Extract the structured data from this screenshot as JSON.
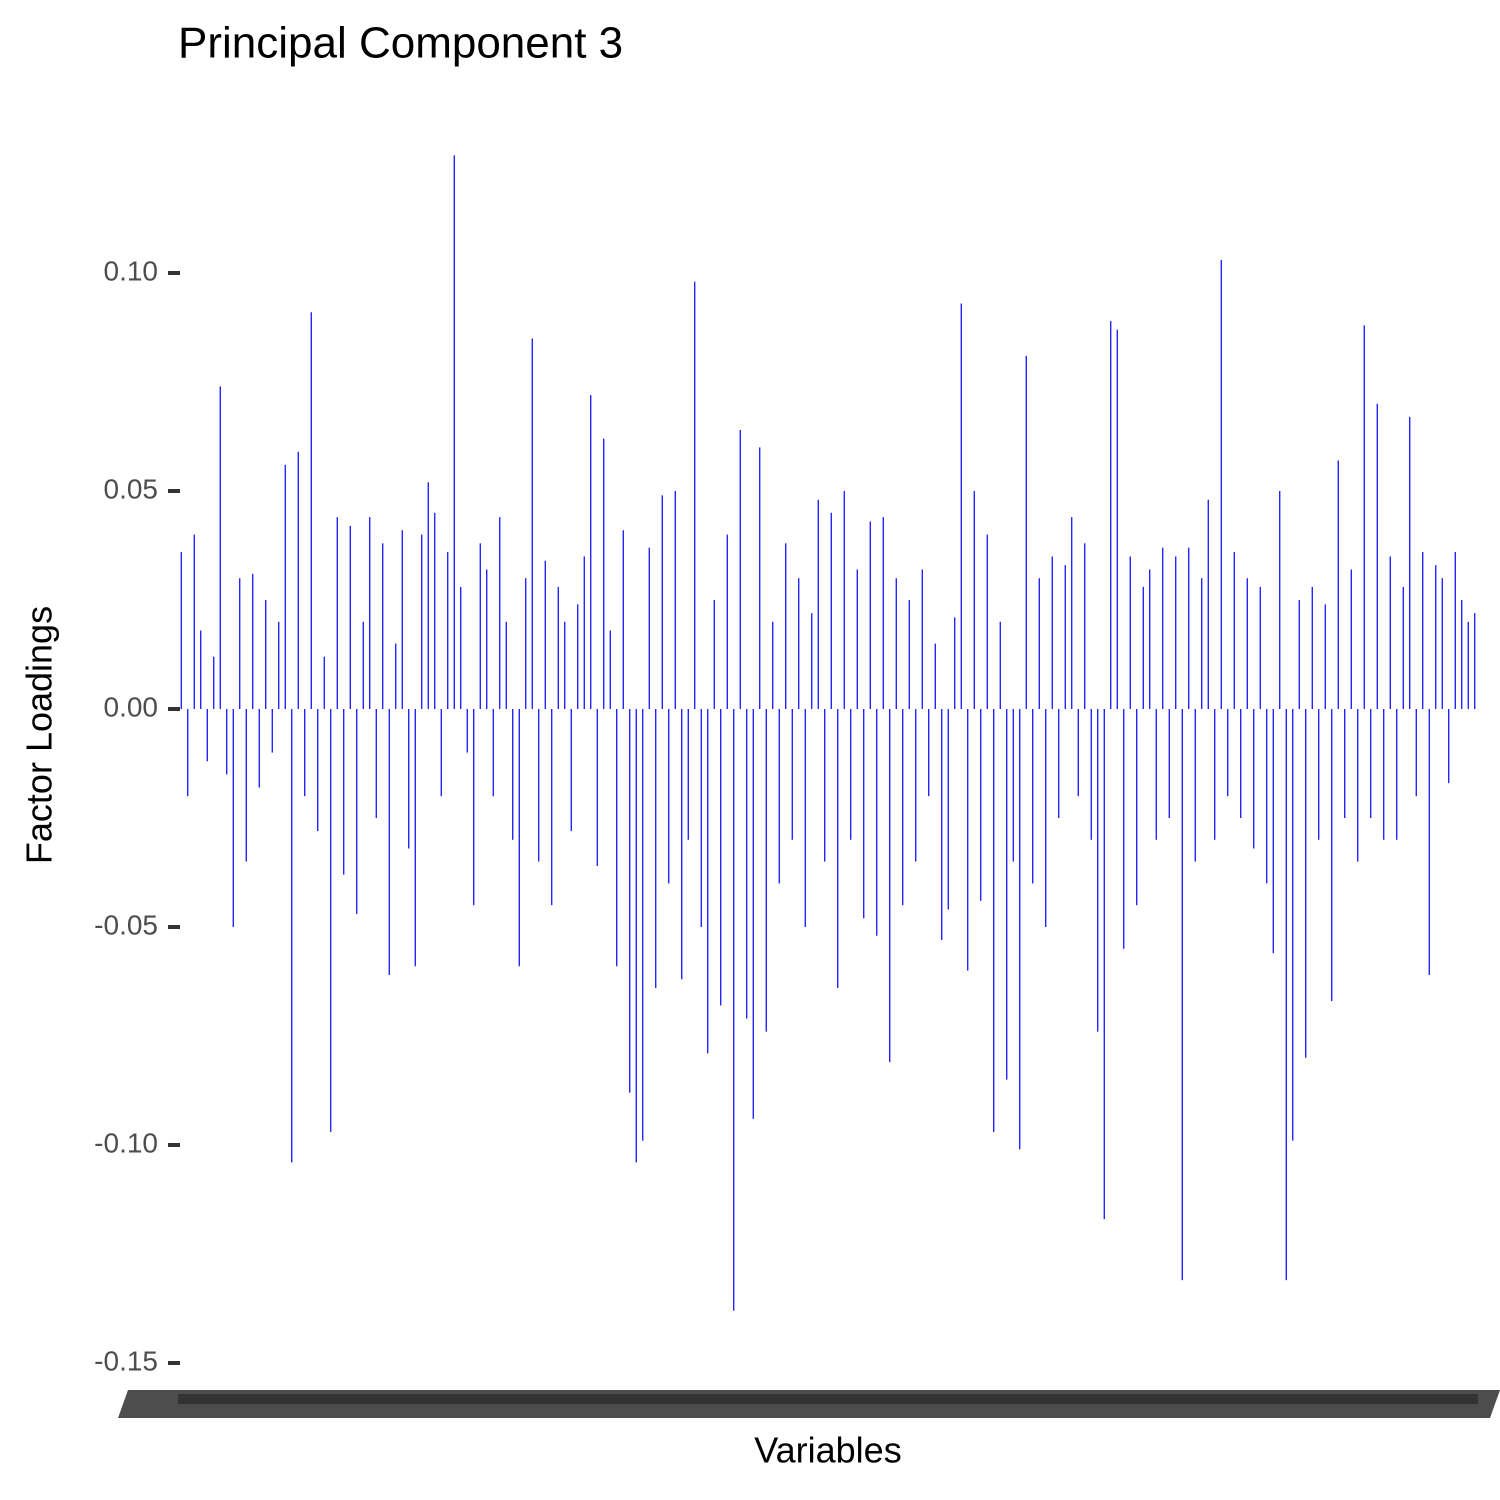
{
  "chart_data": {
    "type": "bar",
    "title": "Principal Component 3",
    "x_label": "Variables",
    "y_label": "Factor Loadings",
    "color": "#0000ff",
    "ylim": [
      -0.153,
      0.133
    ],
    "yticks": [
      {
        "value": -0.15,
        "label": "-0.15"
      },
      {
        "value": -0.1,
        "label": "-0.10"
      },
      {
        "value": -0.05,
        "label": "-0.05"
      },
      {
        "value": 0,
        "label": "0.00"
      },
      0.05,
      {
        "value": 0.1,
        "label": "0.10"
      }
    ],
    "categories": [
      null,
      null,
      null,
      null,
      null,
      null,
      null,
      null,
      null,
      null,
      null,
      null,
      null,
      null,
      null,
      null,
      null,
      null,
      null,
      null,
      null,
      null,
      null,
      null,
      null,
      null,
      null,
      null,
      null,
      null,
      null,
      null,
      null,
      null,
      null,
      null,
      null,
      null,
      null,
      null,
      null,
      null,
      null,
      null,
      null,
      null,
      null,
      null,
      null,
      null,
      null,
      null,
      null,
      null,
      null,
      null,
      null,
      null,
      null,
      null,
      null,
      null,
      null,
      null,
      null,
      null,
      null,
      null,
      null,
      null,
      null,
      null,
      null,
      null,
      null,
      null,
      null,
      null,
      null,
      null,
      null,
      null,
      null,
      null,
      null,
      null,
      null,
      null,
      null,
      null,
      null,
      null,
      null,
      null,
      null,
      null,
      null,
      null,
      null,
      null,
      null,
      null,
      null,
      null,
      null,
      null,
      null,
      null,
      null,
      null,
      null,
      null,
      null,
      null,
      null,
      null,
      null,
      null,
      null,
      null,
      null,
      null,
      null,
      null,
      null,
      null,
      null,
      null,
      null,
      null,
      null,
      null,
      null,
      null,
      null,
      null,
      null,
      null,
      null,
      null,
      null,
      null,
      null,
      null,
      null,
      null,
      null,
      null,
      null,
      null,
      null,
      null,
      null,
      null,
      null,
      null,
      null,
      null,
      null,
      null,
      null,
      null,
      null,
      null,
      null,
      null,
      null,
      null,
      null,
      null,
      null,
      null,
      null,
      null,
      null,
      null,
      null,
      null,
      null,
      null,
      null,
      null,
      null,
      null,
      null,
      null,
      null,
      null,
      null,
      null,
      null,
      null,
      null,
      null,
      null,
      null,
      null,
      null,
      null,
      null
    ],
    "values": [
      0.036,
      -0.02,
      0.04,
      0.018,
      -0.012,
      0.012,
      0.074,
      -0.015,
      -0.05,
      0.03,
      -0.035,
      0.031,
      -0.018,
      0.025,
      -0.01,
      0.02,
      0.056,
      -0.104,
      0.059,
      -0.02,
      0.091,
      -0.028,
      0.012,
      -0.097,
      0.044,
      -0.038,
      0.042,
      -0.047,
      0.02,
      0.044,
      -0.025,
      0.038,
      -0.061,
      0.015,
      0.041,
      -0.032,
      -0.059,
      0.04,
      0.052,
      0.045,
      -0.02,
      0.036,
      0.127,
      0.028,
      -0.01,
      -0.045,
      0.038,
      0.032,
      -0.02,
      0.044,
      0.02,
      -0.03,
      -0.059,
      0.03,
      0.085,
      -0.035,
      0.034,
      -0.045,
      0.028,
      0.02,
      -0.028,
      0.024,
      0.035,
      0.072,
      -0.036,
      0.062,
      0.018,
      -0.059,
      0.041,
      -0.088,
      -0.104,
      -0.099,
      0.037,
      -0.064,
      0.049,
      -0.04,
      0.05,
      -0.062,
      -0.03,
      0.098,
      -0.05,
      -0.079,
      0.025,
      -0.068,
      0.04,
      -0.138,
      0.064,
      -0.071,
      -0.094,
      0.06,
      -0.074,
      0.02,
      -0.04,
      0.038,
      -0.03,
      0.03,
      -0.05,
      0.022,
      0.048,
      -0.035,
      0.045,
      -0.064,
      0.05,
      -0.03,
      0.032,
      -0.048,
      0.043,
      -0.052,
      0.044,
      -0.081,
      0.03,
      -0.045,
      0.025,
      -0.035,
      0.032,
      -0.02,
      0.015,
      -0.053,
      -0.046,
      0.021,
      0.093,
      -0.06,
      0.05,
      -0.044,
      0.04,
      -0.097,
      0.02,
      -0.085,
      -0.035,
      -0.101,
      0.081,
      -0.04,
      0.03,
      -0.05,
      0.035,
      -0.025,
      0.033,
      0.044,
      -0.02,
      0.038,
      -0.03,
      -0.074,
      -0.117,
      0.089,
      0.087,
      -0.055,
      0.035,
      -0.045,
      0.028,
      0.032,
      -0.03,
      0.037,
      -0.025,
      0.035,
      -0.131,
      0.037,
      -0.035,
      0.03,
      0.048,
      -0.03,
      0.103,
      -0.02,
      0.036,
      -0.025,
      0.03,
      -0.032,
      0.028,
      -0.04,
      -0.056,
      0.05,
      -0.131,
      -0.099,
      0.025,
      -0.08,
      0.028,
      -0.03,
      0.024,
      -0.067,
      0.057,
      -0.025,
      0.032,
      -0.035,
      0.088,
      -0.025,
      0.07,
      -0.03,
      0.035,
      -0.03,
      0.028,
      0.067,
      -0.02,
      0.036,
      -0.061,
      0.033,
      0.03,
      -0.017,
      0.036,
      0.025,
      0.02,
      0.022
    ]
  }
}
